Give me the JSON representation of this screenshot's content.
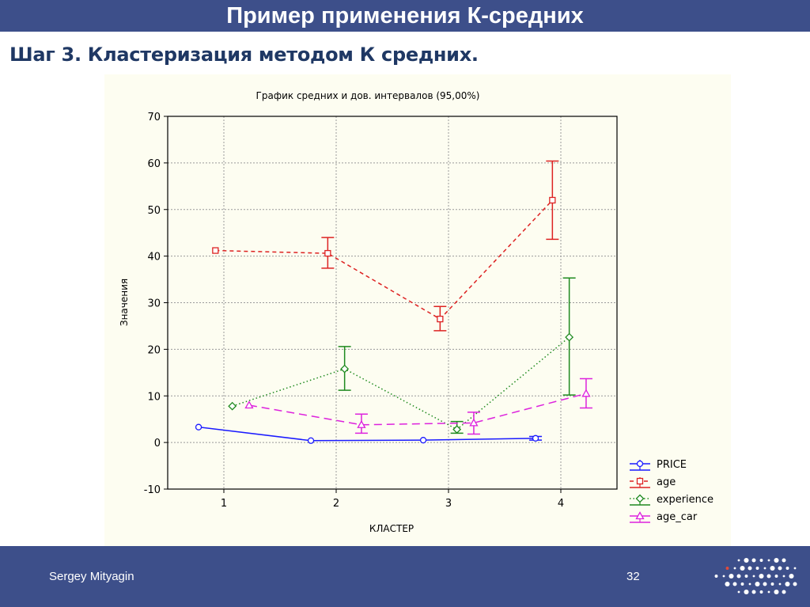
{
  "slide": {
    "title": "Пример применения К-средних",
    "subtitle": "Шаг 3. Кластеризация методом К средних.",
    "author": "Sergey Mityagin",
    "page_number": "32",
    "logo_icon": "dot-grid-logo-icon"
  },
  "colors": {
    "bar": "#3d4f8a",
    "PRICE": "#1a1aff",
    "age": "#dd2222",
    "experience": "#1f8a1f",
    "age_car": "#dd22dd"
  },
  "chart_data": {
    "type": "line",
    "title": "График средних и дов. интервалов (95,00%)",
    "xlabel": "КЛАСТЕР",
    "ylabel": "Значения",
    "x": [
      1,
      2,
      3,
      4
    ],
    "x_ticks": [
      "1",
      "2",
      "3",
      "4"
    ],
    "ylim": [
      -10,
      70
    ],
    "y_ticks": [
      "-10",
      "0",
      "10",
      "20",
      "30",
      "40",
      "50",
      "60",
      "70"
    ],
    "grid": true,
    "legend_position": "bottom-right",
    "series": [
      {
        "name": "PRICE",
        "marker": "circle",
        "line": "solid",
        "offset": -0.225,
        "values": [
          3.3,
          0.4,
          0.5,
          0.9
        ],
        "lower": [
          3.3,
          0.4,
          0.5,
          0.5
        ],
        "upper": [
          3.3,
          0.4,
          0.5,
          1.3
        ]
      },
      {
        "name": "age",
        "marker": "square",
        "line": "dashed",
        "offset": -0.075,
        "values": [
          41.2,
          40.6,
          26.5,
          52.0
        ],
        "lower": [
          41.2,
          37.4,
          24.0,
          43.6
        ],
        "upper": [
          41.2,
          44.0,
          29.2,
          60.4
        ]
      },
      {
        "name": "experience",
        "marker": "diamond",
        "line": "dotted",
        "offset": 0.075,
        "values": [
          7.8,
          15.8,
          2.8,
          22.6
        ],
        "lower": [
          7.8,
          11.2,
          2.0,
          10.2
        ],
        "upper": [
          7.8,
          20.6,
          4.5,
          35.3
        ]
      },
      {
        "name": "age_car",
        "marker": "triangle",
        "line": "longdash",
        "offset": 0.225,
        "values": [
          8.0,
          3.8,
          4.2,
          10.5
        ],
        "lower": [
          8.0,
          2.0,
          1.8,
          7.4
        ],
        "upper": [
          8.0,
          6.1,
          6.5,
          13.7
        ]
      }
    ]
  }
}
